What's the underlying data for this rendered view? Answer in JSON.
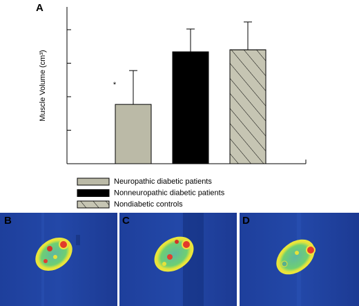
{
  "chart_data": {
    "type": "bar",
    "panel_label": "A",
    "y_label": "Muscle Volume (cm³)",
    "categories": [
      null
    ],
    "series": [
      {
        "name": "Neuropathic diabetic patients",
        "color": "#bbbaa7",
        "hatch": false,
        "values": [
          1.77
        ],
        "errors": [
          1.01
        ]
      },
      {
        "name": "Nonneuropathic diabetic patients",
        "color": "#000000",
        "hatch": false,
        "values": [
          3.34
        ],
        "errors": [
          0.68
        ]
      },
      {
        "name": "Nondiabetic controls",
        "color": "#c6c5b3",
        "hatch": true,
        "values": [
          3.4
        ],
        "errors": [
          0.83
        ]
      }
    ],
    "annotations": [
      {
        "text": "*",
        "series": 0
      }
    ],
    "ylim": [
      0,
      4.68
    ],
    "yticks": [
      0,
      1,
      2,
      3,
      4
    ],
    "grid": false
  },
  "images": {
    "panels": [
      "B",
      "C",
      "D"
    ]
  }
}
